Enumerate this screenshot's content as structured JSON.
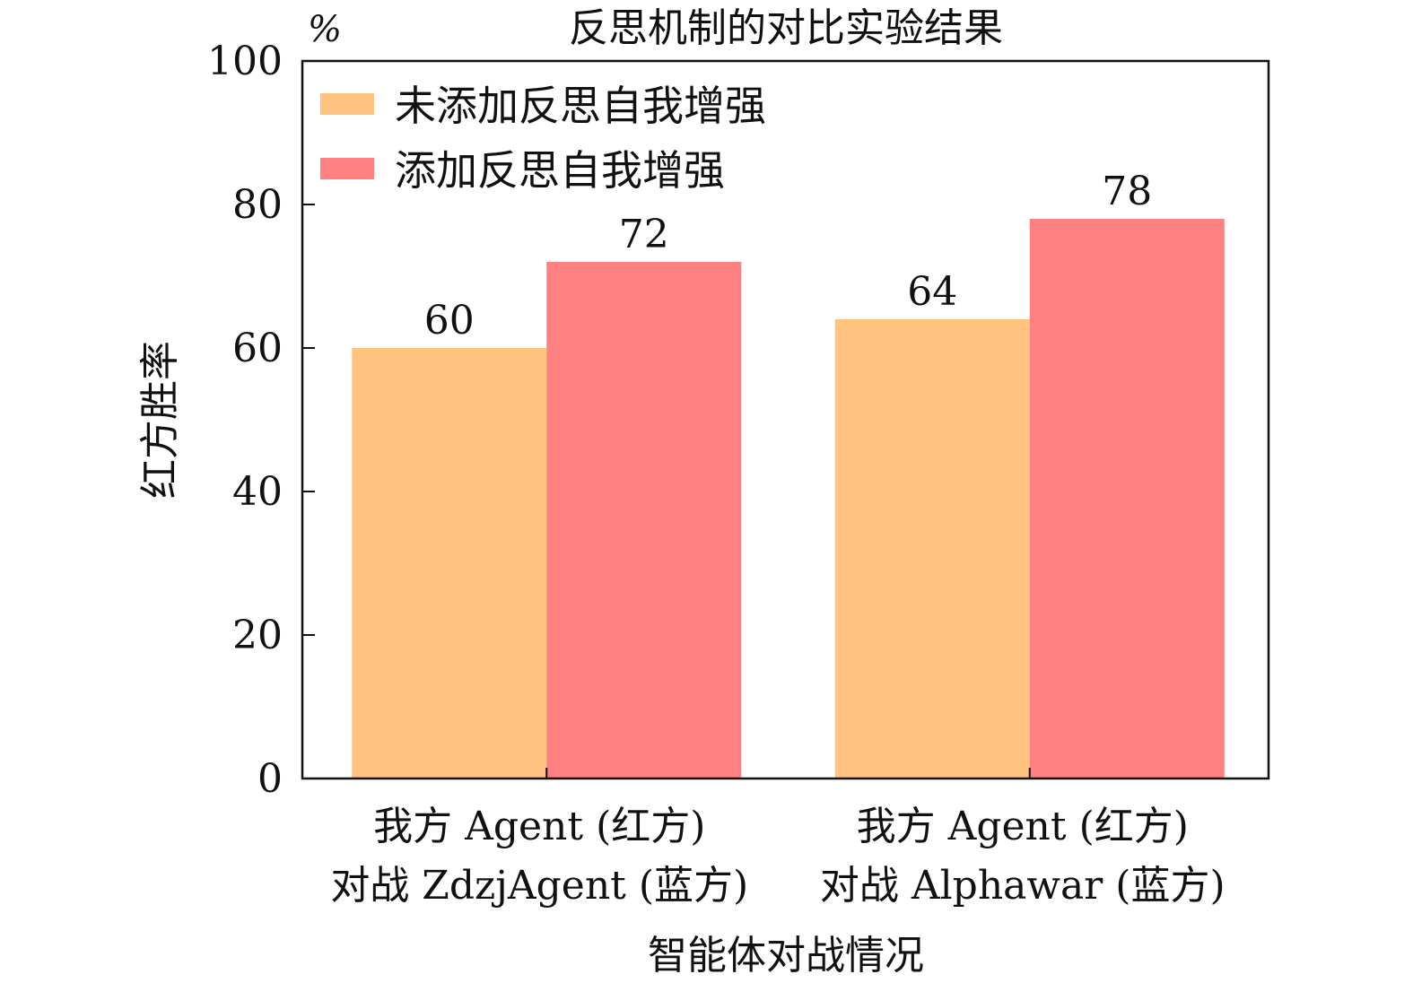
{
  "chart_data": {
    "type": "bar",
    "title": "反思机制的对比实验结果",
    "unit_label": "%",
    "xlabel": "智能体对战情况",
    "ylabel": "红方胜率",
    "ylim": [
      0,
      100
    ],
    "yticks": [
      0,
      20,
      40,
      60,
      80,
      100
    ],
    "categories": [
      [
        "我方 Agent (红方)",
        "对战 ZdzjAgent (蓝方)"
      ],
      [
        "我方 Agent (红方)",
        "对战 Alphawar (蓝方)"
      ]
    ],
    "series": [
      {
        "name": "未添加反思自我增强",
        "values": [
          60,
          64
        ],
        "color": "#fdc37f"
      },
      {
        "name": "添加反思自我增强",
        "values": [
          72,
          78
        ],
        "color": "#fe8080"
      }
    ],
    "legend_position": "top-left",
    "data_labels": true,
    "grid": false
  }
}
